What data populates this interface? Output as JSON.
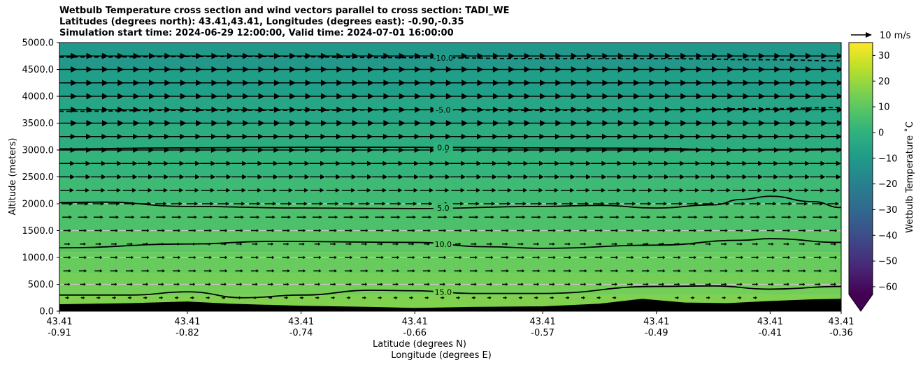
{
  "title_lines": [
    "Wetbulb Temperature cross section and wind vectors parallel to cross section: TADI_WE",
    "Latitudes (degrees north): 43.41,43.41, Longitudes (degrees east): -0.90,-0.35",
    "Simulation start time: 2024-06-29 12:00:00, Valid time: 2024-07-01 16:00:00"
  ],
  "chart_data": {
    "type": "heatmap",
    "ylabel": "Altitude (meters)",
    "xlabel_lat": "Latitude (degrees N)",
    "xlabel_lon": "Longitude (degrees E)",
    "ylim": [
      0,
      5000
    ],
    "y_ticks": [
      "0.0",
      "500.0",
      "1000.0",
      "1500.0",
      "2000.0",
      "2500.0",
      "3000.0",
      "3500.0",
      "4000.0",
      "4500.0",
      "5000.0"
    ],
    "x_ticks_lat": [
      "43.41",
      "43.41",
      "43.41",
      "43.41",
      "43.41",
      "43.41",
      "43.41",
      "43.41"
    ],
    "x_ticks_lon": [
      "-0.91",
      "-0.82",
      "-0.74",
      "-0.66",
      "-0.57",
      "-0.49",
      "-0.41",
      "-0.36"
    ],
    "x_tick_values": [
      -0.91,
      -0.82,
      -0.74,
      -0.66,
      -0.57,
      -0.49,
      -0.41,
      -0.36
    ],
    "x_range": [
      -0.91,
      -0.36
    ],
    "horizontal_grid": true,
    "colorbar": {
      "label": "Wetbulb Temperature $^\\circ$C",
      "label_display": "Wetbulb Temperature ˚C",
      "vmin": -63,
      "vmax": 35,
      "extend": "min",
      "ticks": [
        30,
        20,
        10,
        0,
        -10,
        -20,
        -30,
        -40,
        -50,
        -60
      ],
      "tick_labels": [
        "30",
        "20",
        "10",
        "0",
        "−10",
        "−20",
        "−30",
        "−40",
        "−50",
        "−60"
      ],
      "colormap": "viridis"
    },
    "quiver_key": {
      "label": "10 m/s"
    },
    "temperature_bands": [
      {
        "z": [
          0,
          300
        ],
        "t": 16
      },
      {
        "z": [
          300,
          700
        ],
        "t": 14
      },
      {
        "z": [
          700,
          1100
        ],
        "t": 12
      },
      {
        "z": [
          1100,
          1500
        ],
        "t": 10
      },
      {
        "z": [
          1500,
          2000
        ],
        "t": 7
      },
      {
        "z": [
          2000,
          2500
        ],
        "t": 4
      },
      {
        "z": [
          2500,
          3000
        ],
        "t": 1
      },
      {
        "z": [
          3000,
          3500
        ],
        "t": -2
      },
      {
        "z": [
          3500,
          4000
        ],
        "t": -5
      },
      {
        "z": [
          4000,
          4500
        ],
        "t": -8
      },
      {
        "z": [
          4500,
          5000
        ],
        "t": -11
      }
    ],
    "contours": [
      {
        "label": "-10.0",
        "level": -10,
        "dashed": true,
        "x": [
          -0.91,
          -0.78,
          -0.66,
          -0.57,
          -0.49,
          -0.41,
          -0.36
        ],
        "y": [
          4730,
          4740,
          4720,
          4700,
          4700,
          4680,
          4660
        ]
      },
      {
        "label": "-5.0",
        "level": -5,
        "dashed": true,
        "x": [
          -0.91,
          -0.82,
          -0.74,
          -0.66,
          -0.57,
          -0.49,
          -0.41,
          -0.36
        ],
        "y": [
          3720,
          3740,
          3740,
          3750,
          3740,
          3750,
          3770,
          3790
        ]
      },
      {
        "label": "0.0",
        "level": 0,
        "dashed": false,
        "x": [
          -0.91,
          -0.82,
          -0.74,
          -0.66,
          -0.57,
          -0.49,
          -0.44,
          -0.41,
          -0.36
        ],
        "y": [
          3020,
          3040,
          3050,
          3050,
          3040,
          3030,
          3000,
          3010,
          3020
        ]
      },
      {
        "label": "5.0",
        "level": 5,
        "dashed": false,
        "x": [
          -0.91,
          -0.88,
          -0.82,
          -0.74,
          -0.66,
          -0.57,
          -0.53,
          -0.49,
          -0.45,
          -0.43,
          -0.41,
          -0.38,
          -0.36
        ],
        "y": [
          2020,
          2030,
          1950,
          1920,
          1910,
          1950,
          1970,
          1920,
          1980,
          2080,
          2140,
          2040,
          1930
        ]
      },
      {
        "label": "10.0",
        "level": 10,
        "dashed": false,
        "x": [
          -0.91,
          -0.82,
          -0.76,
          -0.66,
          -0.61,
          -0.57,
          -0.49,
          -0.43,
          -0.41,
          -0.36
        ],
        "y": [
          1180,
          1250,
          1300,
          1280,
          1200,
          1170,
          1230,
          1320,
          1350,
          1280
        ]
      },
      {
        "label": "15.0",
        "level": 15,
        "dashed": false,
        "x": [
          -0.91,
          -0.86,
          -0.82,
          -0.78,
          -0.74,
          -0.69,
          -0.66,
          -0.62,
          -0.57,
          -0.49,
          -0.45,
          -0.41,
          -0.36
        ],
        "y": [
          300,
          300,
          360,
          250,
          300,
          390,
          380,
          330,
          330,
          460,
          470,
          410,
          460
        ]
      }
    ],
    "terrain": {
      "x": [
        -0.91,
        -0.86,
        -0.82,
        -0.79,
        -0.74,
        -0.69,
        -0.66,
        -0.62,
        -0.57,
        -0.53,
        -0.5,
        -0.47,
        -0.44,
        -0.41,
        -0.38,
        -0.36
      ],
      "y": [
        130,
        150,
        180,
        140,
        100,
        80,
        60,
        80,
        90,
        140,
        230,
        160,
        150,
        190,
        220,
        230
      ]
    },
    "wind_vectors": {
      "direction": "east",
      "x_spacing_deg": 0.011,
      "z_spacing_m": 250,
      "speed_by_level": [
        {
          "z": 250,
          "u": 2
        },
        {
          "z": 500,
          "u": 3
        },
        {
          "z": 750,
          "u": 4
        },
        {
          "z": 1000,
          "u": 4
        },
        {
          "z": 1250,
          "u": 3
        },
        {
          "z": 1500,
          "u": 4
        },
        {
          "z": 1750,
          "u": 5
        },
        {
          "z": 2000,
          "u": 6
        },
        {
          "z": 2250,
          "u": 7
        },
        {
          "z": 2500,
          "u": 8
        },
        {
          "z": 2750,
          "u": 8
        },
        {
          "z": 3000,
          "u": 9
        },
        {
          "z": 3250,
          "u": 9
        },
        {
          "z": 3500,
          "u": 10
        },
        {
          "z": 3750,
          "u": 10
        },
        {
          "z": 4000,
          "u": 10
        },
        {
          "z": 4250,
          "u": 10
        },
        {
          "z": 4500,
          "u": 10
        },
        {
          "z": 4750,
          "u": 10
        }
      ]
    }
  }
}
